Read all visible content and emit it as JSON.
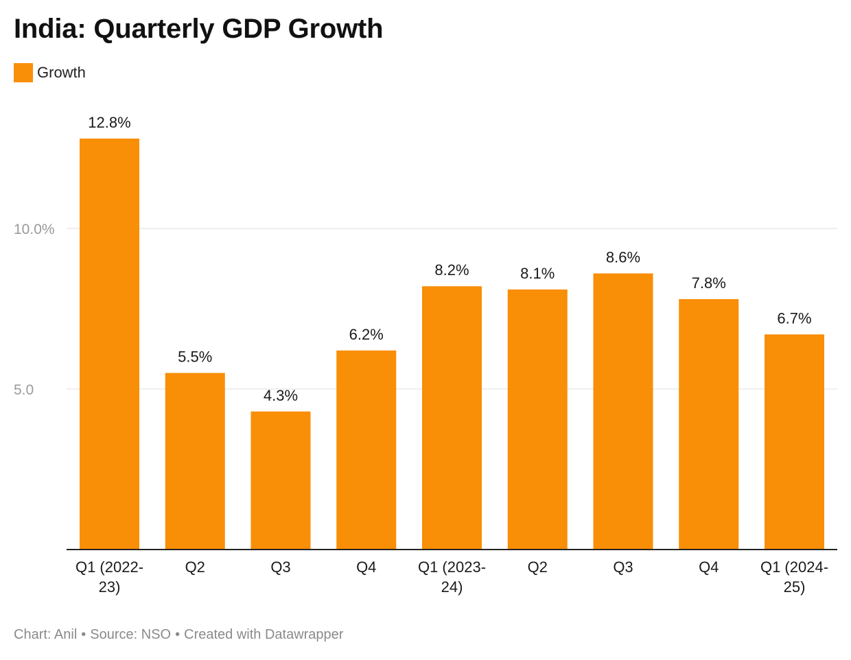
{
  "title": "India: Quarterly GDP Growth",
  "legend": {
    "label": "Growth",
    "color": "#f98e07"
  },
  "footer": {
    "chart_credit": "Chart: Anil",
    "source": "Source: NSO",
    "created": "Created with Datawrapper",
    "separator": "•"
  },
  "chart_data": {
    "type": "bar",
    "title": "India: Quarterly GDP Growth",
    "categories": [
      [
        "Q1 (2022-",
        "23)"
      ],
      [
        "Q2"
      ],
      [
        "Q3"
      ],
      [
        "Q4"
      ],
      [
        "Q1 (2023-",
        "24)"
      ],
      [
        "Q2"
      ],
      [
        "Q3"
      ],
      [
        "Q4"
      ],
      [
        "Q1 (2024-",
        "25)"
      ]
    ],
    "series": [
      {
        "name": "Growth",
        "color": "#f98e07",
        "values": [
          12.8,
          5.5,
          4.3,
          6.2,
          8.2,
          8.1,
          8.6,
          7.8,
          6.7
        ],
        "labels": [
          "12.8%",
          "5.5%",
          "4.3%",
          "6.2%",
          "8.2%",
          "8.1%",
          "8.6%",
          "7.8%",
          "6.7%"
        ]
      }
    ],
    "yticks": [
      {
        "value": 5,
        "label": "5.0"
      },
      {
        "value": 10,
        "label": "10.0%"
      }
    ],
    "ylim": [
      0,
      14
    ],
    "grid": true,
    "legend_position": "top-left",
    "xlabel": "",
    "ylabel": ""
  }
}
